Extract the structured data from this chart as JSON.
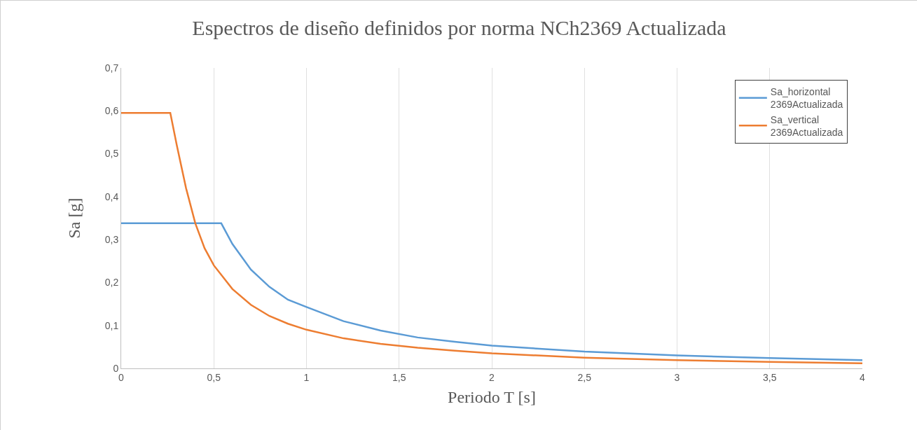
{
  "chart_data": {
    "type": "line",
    "title": "Espectros de diseño definidos por norma NCh2369 Actualizada",
    "xlabel": "Periodo T [s]",
    "ylabel": "Sa [g]",
    "series": [
      {
        "name": "Sa_horizontal 2369Actualizada",
        "color": "#5b9bd5",
        "x": [
          0,
          0.54,
          0.6,
          0.7,
          0.8,
          0.9,
          1.0,
          1.2,
          1.4,
          1.6,
          1.8,
          2.0,
          2.5,
          3.0,
          3.5,
          4.0
        ],
        "values": [
          0.338,
          0.338,
          0.29,
          0.23,
          0.19,
          0.16,
          0.143,
          0.11,
          0.088,
          0.072,
          0.062,
          0.053,
          0.039,
          0.03,
          0.024,
          0.019
        ]
      },
      {
        "name": "Sa_vertical 2369Actualizada",
        "color": "#ed7d31",
        "x": [
          0,
          0.265,
          0.3,
          0.35,
          0.4,
          0.45,
          0.5,
          0.6,
          0.7,
          0.8,
          0.9,
          1.0,
          1.2,
          1.4,
          1.6,
          1.8,
          2.0,
          2.5,
          3.0,
          3.5,
          4.0
        ],
        "values": [
          0.595,
          0.595,
          0.52,
          0.42,
          0.338,
          0.28,
          0.24,
          0.185,
          0.148,
          0.122,
          0.104,
          0.09,
          0.07,
          0.057,
          0.048,
          0.041,
          0.035,
          0.025,
          0.019,
          0.015,
          0.012
        ]
      }
    ],
    "xlim": [
      0,
      4
    ],
    "xticks": [
      0,
      {
        "value": 0.5,
        "label": "0,5"
      },
      1,
      {
        "value": 1.5,
        "label": "1,5"
      },
      2,
      {
        "value": 2.5,
        "label": "2,5"
      },
      3,
      {
        "value": 3.5,
        "label": "3,5"
      },
      4
    ],
    "ylim": [
      0,
      0.7
    ],
    "yticks": [
      0,
      {
        "value": 0.1,
        "label": "0,1"
      },
      {
        "value": 0.2,
        "label": "0,2"
      },
      {
        "value": 0.3,
        "label": "0,3"
      },
      {
        "value": 0.4,
        "label": "0,4"
      },
      {
        "value": 0.5,
        "label": "0,5"
      },
      {
        "value": 0.6,
        "label": "0,6"
      },
      {
        "value": 0.7,
        "label": "0,7"
      }
    ],
    "grid": "x",
    "legend": "top right",
    "marker": "none",
    "line_style": "solid"
  }
}
